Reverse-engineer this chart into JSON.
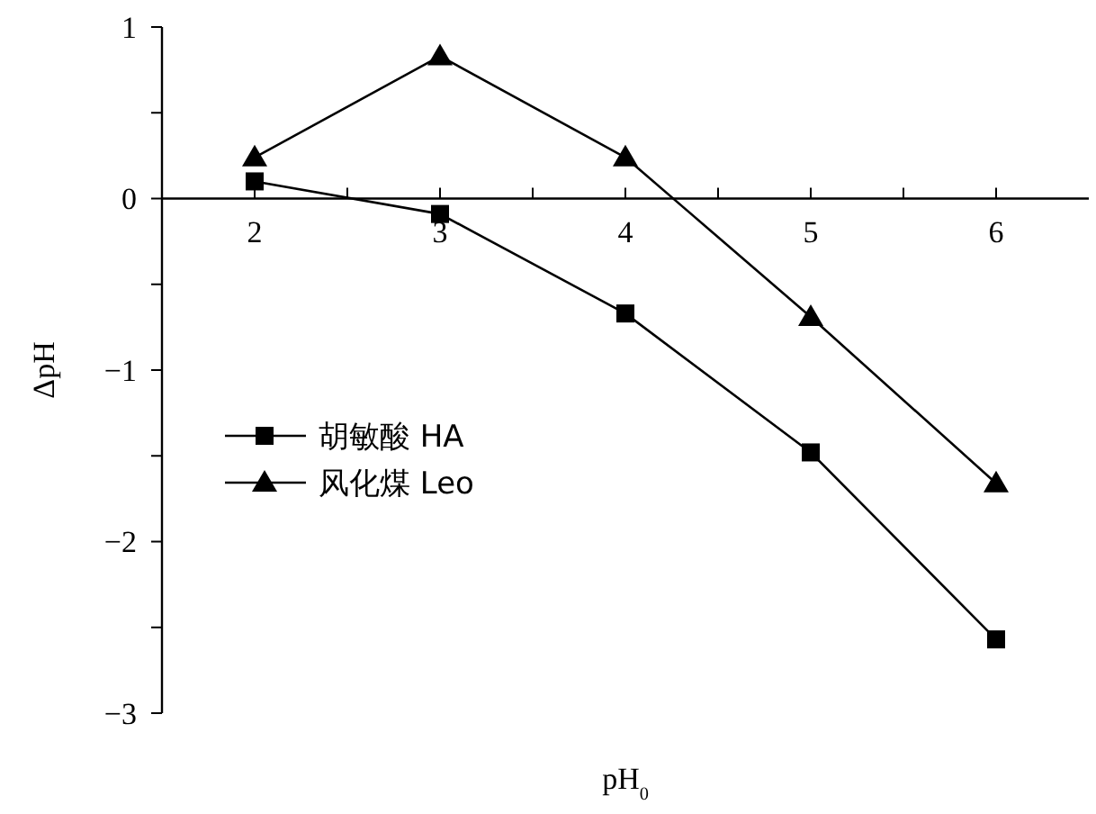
{
  "chart_data": {
    "type": "line",
    "xlabel": "pH$_{0}$",
    "ylabel": "ΔpH",
    "x": [
      2,
      3,
      4,
      5,
      6
    ],
    "xlim": [
      1.5,
      6.5
    ],
    "xticks": [
      2,
      {
        "value": 2.5,
        "label": null
      },
      3,
      {
        "value": 3.5,
        "label": null
      },
      4,
      {
        "value": 4.5,
        "label": null
      },
      5,
      {
        "value": 5.5,
        "label": null
      },
      6
    ],
    "ylim": [
      -3,
      1
    ],
    "yticks": [
      {
        "value": -3,
        "label": "−3"
      },
      {
        "value": -2.5,
        "label": null
      },
      {
        "value": -2,
        "label": "−2"
      },
      {
        "value": -1.5,
        "label": null
      },
      {
        "value": -1,
        "label": "−1"
      },
      {
        "value": -0.5,
        "label": null
      },
      0,
      {
        "value": 0.5,
        "label": null
      },
      1
    ],
    "series": [
      {
        "name": "胡敏酸 HA",
        "color": "#000000",
        "marker": "square",
        "values": [
          0.1,
          -0.09,
          -0.67,
          -1.48,
          -2.57
        ]
      },
      {
        "name": "风化煤 Leo",
        "color": "#000000",
        "marker": "triangle",
        "values": [
          0.24,
          0.83,
          0.24,
          -0.69,
          -1.66
        ]
      }
    ],
    "legend": "left",
    "grid": false,
    "line_style": "solid"
  }
}
